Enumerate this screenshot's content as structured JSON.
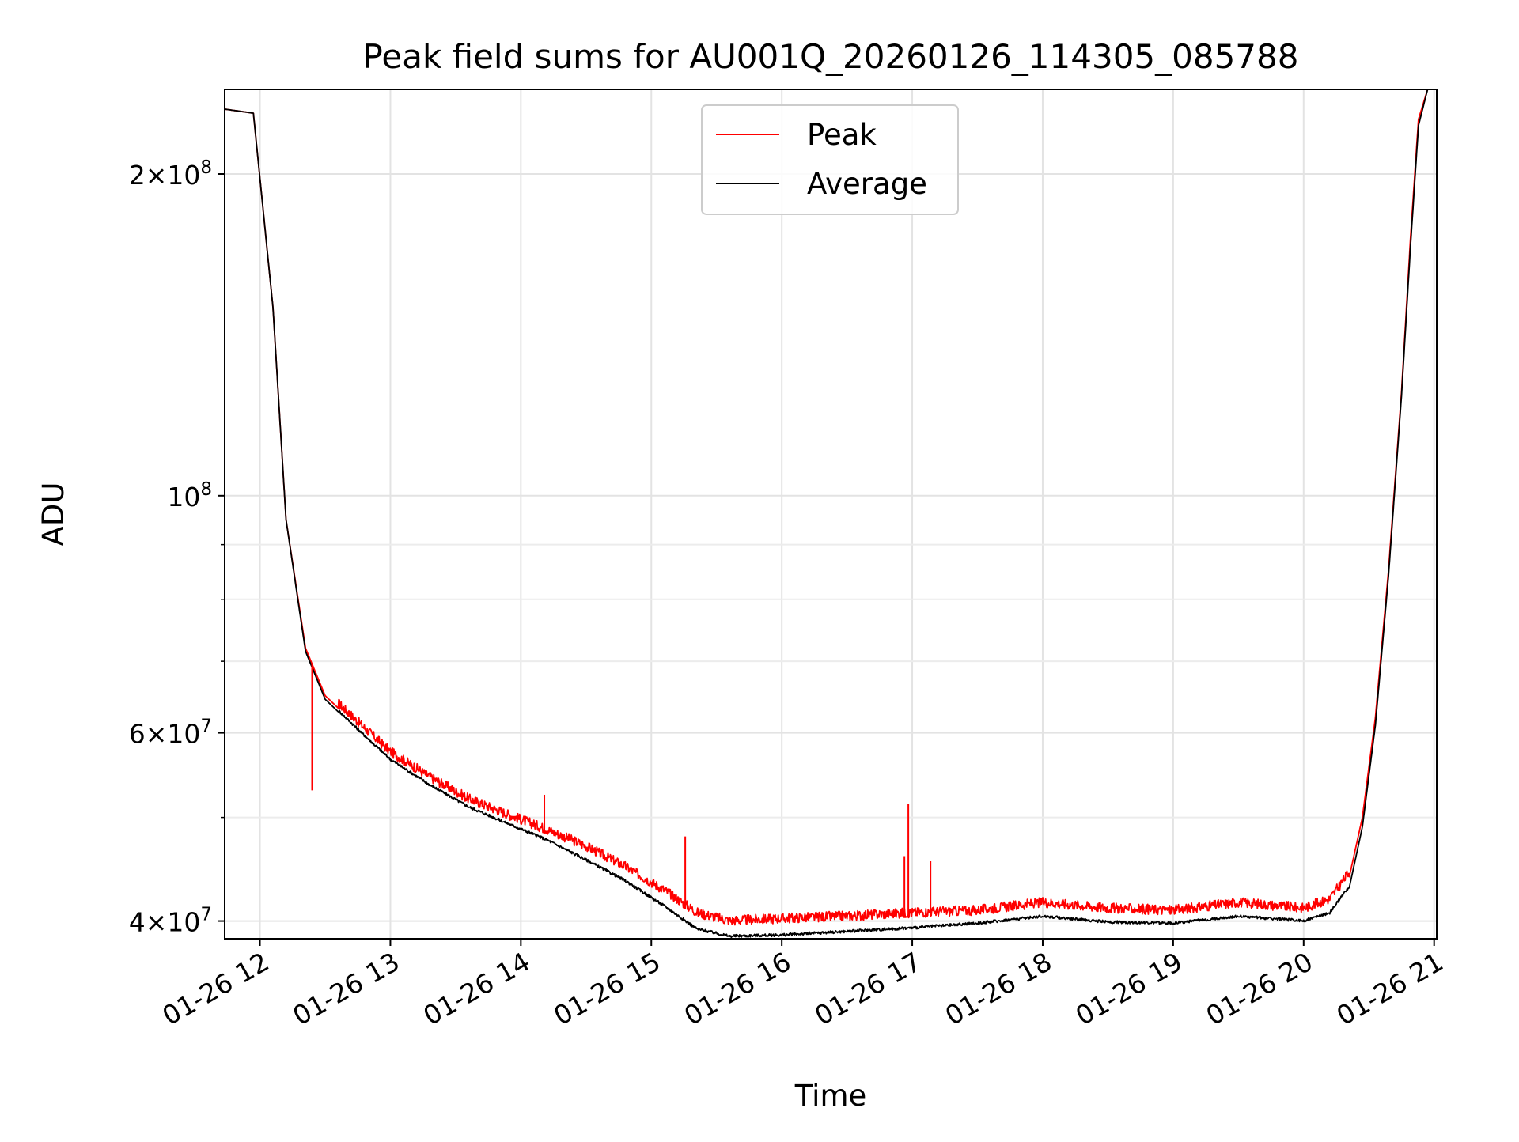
{
  "chart_data": {
    "type": "line",
    "title": "Peak field sums for AU001Q_20260126_114305_085788",
    "xlabel": "Time",
    "ylabel": "ADU",
    "yscale": "log",
    "grid": true,
    "legend_position": "top-center",
    "xlim_hours": [
      11.73,
      21.02
    ],
    "ylim": [
      38500000,
      240000000
    ],
    "x_ticks": [
      {
        "value": 12,
        "label": "01-26 12"
      },
      {
        "value": 13,
        "label": "01-26 13"
      },
      {
        "value": 14,
        "label": "01-26 14"
      },
      {
        "value": 15,
        "label": "01-26 15"
      },
      {
        "value": 16,
        "label": "01-26 16"
      },
      {
        "value": 17,
        "label": "01-26 17"
      },
      {
        "value": 18,
        "label": "01-26 18"
      },
      {
        "value": 19,
        "label": "01-26 19"
      },
      {
        "value": 20,
        "label": "01-26 20"
      },
      {
        "value": 21,
        "label": "01-26 21"
      }
    ],
    "y_ticks": [
      {
        "value": 200000000,
        "mant": "2",
        "exp": "8"
      },
      {
        "value": 100000000,
        "mant": "",
        "exp": "8"
      },
      {
        "value": 60000000,
        "mant": "6",
        "exp": "7"
      },
      {
        "value": 40000000,
        "mant": "4",
        "exp": "7"
      }
    ],
    "y_minor_ticks": [
      50000000,
      70000000,
      80000000,
      90000000,
      300000000
    ],
    "series": [
      {
        "name": "Peak",
        "color": "#ff0000",
        "x": [
          11.73,
          11.95,
          12.1,
          12.2,
          12.35,
          12.5,
          12.8,
          13.0,
          13.3,
          13.6,
          13.9,
          14.2,
          14.5,
          14.8,
          15.1,
          15.35,
          15.6,
          16.0,
          16.5,
          17.0,
          17.5,
          18.0,
          18.5,
          19.0,
          19.5,
          20.0,
          20.2,
          20.35,
          20.45,
          20.55,
          20.65,
          20.75,
          20.82,
          20.88,
          20.95,
          21.02
        ],
        "y": [
          230000000,
          228000000,
          150000000,
          95000000,
          72000000,
          65000000,
          60000000,
          57000000,
          54000000,
          51500000,
          49800000,
          48200000,
          46500000,
          44500000,
          42300000,
          40300000,
          39600000,
          39800000,
          40000000,
          40300000,
          40500000,
          41200000,
          40700000,
          40500000,
          41200000,
          40700000,
          41500000,
          44000000,
          50000000,
          62000000,
          85000000,
          125000000,
          175000000,
          225000000,
          240000000,
          240000000
        ]
      },
      {
        "name": "Average",
        "color": "#000000",
        "x": [
          11.73,
          11.95,
          12.1,
          12.2,
          12.35,
          12.5,
          12.8,
          13.0,
          13.3,
          13.6,
          13.9,
          14.2,
          14.5,
          14.8,
          15.1,
          15.35,
          15.6,
          16.0,
          16.5,
          17.0,
          17.5,
          18.0,
          18.5,
          19.0,
          19.5,
          20.0,
          20.2,
          20.35,
          20.45,
          20.55,
          20.65,
          20.75,
          20.82,
          20.88,
          20.95,
          21.02
        ],
        "y": [
          230000000,
          228000000,
          150000000,
          95000000,
          71500000,
          64500000,
          59500000,
          56500000,
          53500000,
          51000000,
          49200000,
          47500000,
          45500000,
          43500000,
          41200000,
          39200000,
          38600000,
          38700000,
          39000000,
          39300000,
          39700000,
          40300000,
          39800000,
          39700000,
          40300000,
          39900000,
          40600000,
          43000000,
          49000000,
          61000000,
          84000000,
          124000000,
          172000000,
          222000000,
          240000000,
          240000000
        ]
      }
    ],
    "spikes": [
      {
        "series": "Peak",
        "x": 14.18,
        "y": 52500000
      },
      {
        "series": "Peak",
        "x": 15.26,
        "y": 48000000
      },
      {
        "series": "Peak",
        "x": 16.97,
        "y": 51500000
      },
      {
        "series": "Peak",
        "x": 16.94,
        "y": 46000000
      },
      {
        "series": "Peak",
        "x": 17.14,
        "y": 45500000
      },
      {
        "series": "Peak",
        "x": 12.4,
        "y": 53000000
      }
    ],
    "legend": [
      {
        "label": "Peak",
        "color": "#ff0000"
      },
      {
        "label": "Average",
        "color": "#000000"
      }
    ]
  }
}
